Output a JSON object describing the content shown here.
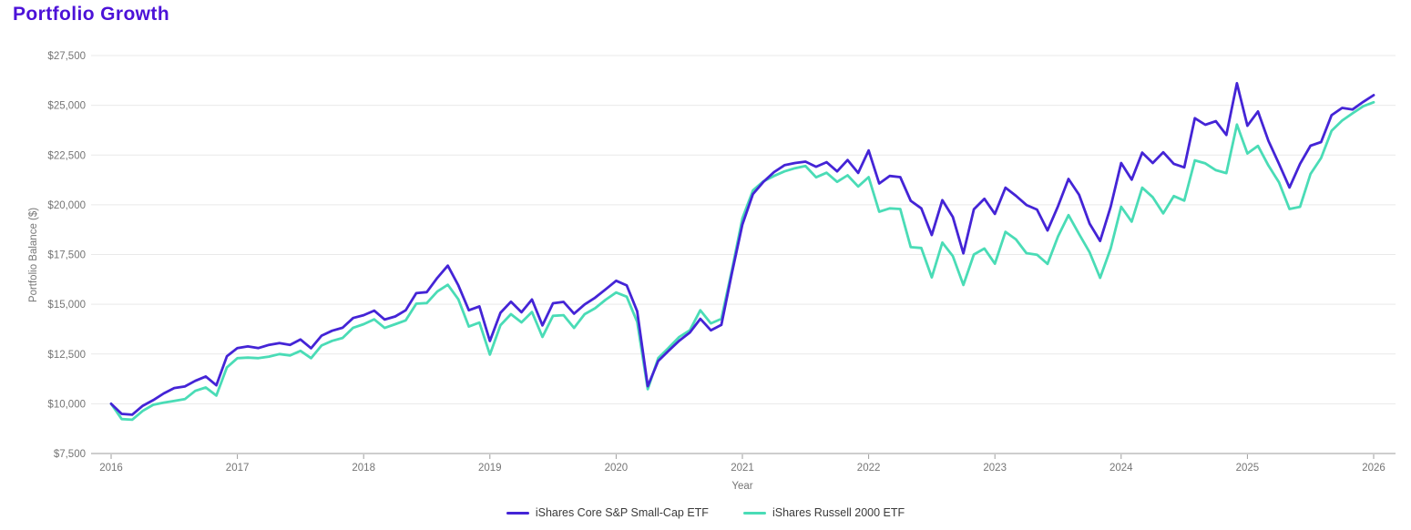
{
  "theme": {
    "title_color": "#4c12d8",
    "tick_color": "#757575",
    "gridline_color": "#e9e9e9",
    "axis_line_color": "#9e9e9e",
    "legend_text_color": "#3a3a3a",
    "background": "#ffffff"
  },
  "chart_data": {
    "type": "line",
    "title": "Portfolio Growth",
    "xlabel": "Year",
    "ylabel": "Portfolio Balance ($)",
    "xlim": [
      2016,
      2026
    ],
    "ylim": [
      7500,
      27500
    ],
    "grid": "horizontal",
    "legend_position": "bottom-center",
    "frequency": "monthly",
    "start_month": "2015-12",
    "x_ticks": [
      "2016",
      "2017",
      "2018",
      "2019",
      "2020",
      "2021",
      "2022",
      "2023",
      "2024",
      "2025",
      "2026"
    ],
    "y_ticks": [
      {
        "value": 27500,
        "label": "$27,500"
      },
      {
        "value": 25000,
        "label": "$25,000"
      },
      {
        "value": 22500,
        "label": "$22,500"
      },
      {
        "value": 20000,
        "label": "$20,000"
      },
      {
        "value": 17500,
        "label": "$17,500"
      },
      {
        "value": 15000,
        "label": "$15,000"
      },
      {
        "value": 12500,
        "label": "$12,500"
      },
      {
        "value": 10000,
        "label": "$10,000"
      },
      {
        "value": 7500,
        "label": "$7,500"
      }
    ],
    "series": [
      {
        "name": "iShares Core S&P Small-Cap ETF",
        "color": "#4424d6",
        "values": [
          10000,
          9490,
          9450,
          9900,
          10180,
          10520,
          10790,
          10870,
          11150,
          11370,
          10930,
          12390,
          12800,
          12880,
          12800,
          12960,
          13050,
          12960,
          13230,
          12790,
          13420,
          13670,
          13820,
          14310,
          14450,
          14680,
          14230,
          14390,
          14700,
          15560,
          15610,
          16330,
          16940,
          15950,
          14700,
          14890,
          13150,
          14570,
          15130,
          14600,
          15240,
          13940,
          15050,
          15120,
          14530,
          14990,
          15330,
          15750,
          16180,
          15950,
          14650,
          10880,
          12150,
          12670,
          13170,
          13580,
          14270,
          13690,
          13960,
          16570,
          19010,
          20540,
          21150,
          21640,
          21990,
          22100,
          22170,
          21910,
          22140,
          21680,
          22250,
          21600,
          22730,
          21070,
          21450,
          21390,
          20200,
          19820,
          18480,
          20230,
          19390,
          17560,
          19770,
          20300,
          19540,
          20860,
          20450,
          19990,
          19760,
          18710,
          19930,
          21300,
          20500,
          19050,
          18180,
          19900,
          22100,
          21260,
          22620,
          22100,
          22640,
          22060,
          21880,
          24350,
          24020,
          24200,
          23510,
          26110,
          23970,
          24690,
          23210,
          22060,
          20870,
          22060,
          22970,
          23150,
          24500,
          24870,
          24790,
          25170,
          25510
        ]
      },
      {
        "name": "iShares Russell 2000 ETF",
        "color": "#4adcb6",
        "values": [
          10000,
          9230,
          9200,
          9640,
          9950,
          10060,
          10140,
          10230,
          10650,
          10820,
          10410,
          11830,
          12290,
          12320,
          12290,
          12370,
          12500,
          12430,
          12660,
          12290,
          12930,
          13160,
          13310,
          13820,
          14000,
          14240,
          13810,
          14000,
          14190,
          15030,
          15060,
          15640,
          15980,
          15250,
          13880,
          14080,
          12470,
          13950,
          14500,
          14090,
          14610,
          13360,
          14420,
          14450,
          13810,
          14500,
          14800,
          15230,
          15590,
          15380,
          14120,
          10730,
          12290,
          12820,
          13360,
          13690,
          14700,
          14040,
          14270,
          16720,
          19320,
          20720,
          21180,
          21450,
          21680,
          21840,
          21950,
          21380,
          21610,
          21150,
          21480,
          20920,
          21390,
          19650,
          19820,
          19790,
          17870,
          17830,
          16350,
          18100,
          17420,
          15970,
          17500,
          17800,
          17040,
          18640,
          18260,
          17570,
          17490,
          17030,
          18410,
          19480,
          18530,
          17610,
          16330,
          17800,
          19900,
          19150,
          20860,
          20380,
          19570,
          20440,
          20210,
          22230,
          22080,
          21740,
          21590,
          24030,
          22580,
          22960,
          21970,
          21130,
          19790,
          19900,
          21550,
          22350,
          23720,
          24230,
          24600,
          24950,
          25150
        ]
      }
    ]
  }
}
